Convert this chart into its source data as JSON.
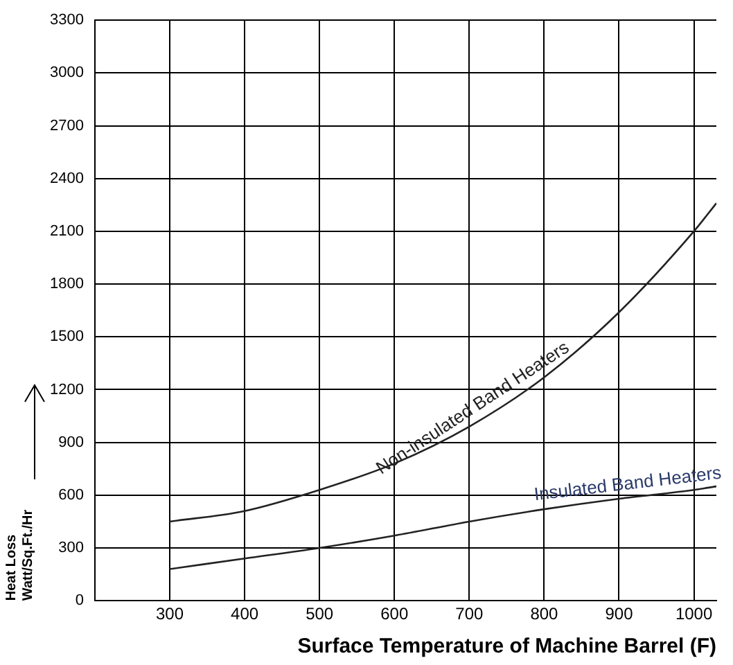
{
  "chart_data": {
    "type": "line",
    "xlabel": "Surface Temperature of Machine Barrel (F)",
    "ylabel": "Heat Loss\nWatt/Sq.Ft./Hr",
    "x": [
      300,
      400,
      500,
      600,
      700,
      800,
      900,
      1000,
      1030
    ],
    "series": [
      {
        "name": "Non-insulated Band Heaters",
        "color": "#222222",
        "values": [
          450,
          510,
          630,
          780,
          990,
          1270,
          1640,
          2100,
          2260
        ]
      },
      {
        "name": "Insulated Band Heaters",
        "color": "#222222",
        "values": [
          180,
          240,
          300,
          370,
          450,
          520,
          580,
          630,
          650
        ]
      }
    ],
    "xlim": [
      200,
      1030
    ],
    "xticks": [
      {
        "value": 200,
        "label": null
      },
      300,
      400,
      500,
      600,
      700,
      800,
      900,
      1000
    ],
    "ylim": [
      0,
      3300
    ],
    "yticks": [
      0,
      300,
      600,
      900,
      1200,
      1500,
      1800,
      2100,
      2400,
      2700,
      3000,
      3300
    ],
    "grid": true,
    "legend": false,
    "marker": "none",
    "line_style": "solid"
  }
}
